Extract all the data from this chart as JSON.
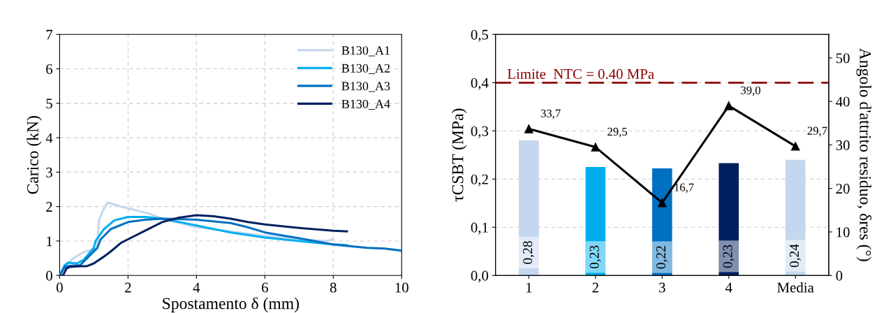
{
  "chart_data": [
    {
      "type": "line",
      "xlabel": "Spostamento δ (mm)",
      "ylabel": "Carico (kN)",
      "xlim": [
        0,
        10
      ],
      "ylim": [
        0,
        7
      ],
      "xticks": [
        0,
        2,
        4,
        6,
        8,
        10
      ],
      "yticks": [
        0,
        1,
        2,
        3,
        4,
        5,
        6,
        7
      ],
      "grid": true,
      "legend": "top right",
      "line_style": "solid",
      "marker": "none",
      "series": [
        {
          "name": "B130_A1",
          "color": "#c5d7ee",
          "x": [
            0,
            0.2,
            0.4,
            0.7,
            1.1,
            1.15,
            1.25,
            1.4,
            1.8,
            2.2,
            2.6,
            3.0,
            4,
            5,
            6,
            7,
            7.8,
            8.0
          ],
          "values": [
            0,
            0.3,
            0.5,
            0.68,
            0.78,
            1.6,
            1.85,
            2.12,
            2.0,
            1.9,
            1.8,
            1.65,
            1.4,
            1.28,
            1.15,
            1.05,
            1.0,
            1.05
          ]
        },
        {
          "name": "B130_A2",
          "color": "#00aeef",
          "x": [
            0,
            0.15,
            0.25,
            0.5,
            0.7,
            1.0,
            1.05,
            1.3,
            1.6,
            2.0,
            2.5,
            3.0,
            4,
            5,
            6,
            7,
            8,
            8.4
          ],
          "values": [
            0,
            0.3,
            0.37,
            0.35,
            0.45,
            0.8,
            1.0,
            1.35,
            1.6,
            1.7,
            1.7,
            1.65,
            1.45,
            1.25,
            1.1,
            1.0,
            0.9,
            0.88
          ]
        },
        {
          "name": "B130_A3",
          "color": "#0070c0",
          "x": [
            0,
            0.15,
            0.3,
            0.6,
            0.8,
            1.1,
            1.2,
            1.5,
            2,
            2.5,
            3,
            4,
            5,
            5.5,
            6,
            7,
            8,
            9,
            9.5,
            10
          ],
          "values": [
            0,
            0.25,
            0.28,
            0.3,
            0.5,
            0.8,
            1.05,
            1.35,
            1.55,
            1.62,
            1.65,
            1.62,
            1.52,
            1.4,
            1.25,
            1.08,
            0.9,
            0.8,
            0.78,
            0.72
          ]
        },
        {
          "name": "B130_A4",
          "color": "#002060",
          "x": [
            0,
            0.1,
            0.2,
            0.3,
            0.6,
            0.8,
            1.0,
            1.3,
            1.5,
            1.8,
            2,
            2.5,
            3,
            3.5,
            4,
            4.5,
            5,
            5.5,
            6,
            7,
            8,
            8.4
          ],
          "values": [
            0,
            0,
            0.2,
            0.25,
            0.27,
            0.27,
            0.35,
            0.55,
            0.7,
            0.95,
            1.05,
            1.3,
            1.55,
            1.68,
            1.75,
            1.72,
            1.65,
            1.55,
            1.48,
            1.38,
            1.3,
            1.28
          ]
        }
      ]
    },
    {
      "type": "bar",
      "categories": [
        "1",
        "2",
        "3",
        "4",
        "Media"
      ],
      "ylabel": "τCSBT (MPa)",
      "y2label": "Angolo d'attrito residuo, δres (°)",
      "ylim": [
        0,
        0.5
      ],
      "yticks": [
        {
          "value": 0,
          "label": "0,0"
        },
        {
          "value": 0.1,
          "label": "0,1"
        },
        {
          "value": 0.2,
          "label": "0,2"
        },
        {
          "value": 0.3,
          "label": "0,3"
        },
        {
          "value": 0.4,
          "label": "0,4"
        },
        {
          "value": 0.5,
          "label": "0,5"
        }
      ],
      "y2lim": [
        0,
        55.4
      ],
      "y2ticks": [
        0,
        10,
        20,
        30,
        40,
        50
      ],
      "grid": "y",
      "legend": false,
      "ref_lines": [
        {
          "axis": "y",
          "value": 0.4,
          "label": "Limite  NTC = 0.40 MPa",
          "color": "#8b0000",
          "line_style": "dashed"
        }
      ],
      "series": [
        {
          "type": "bar",
          "colors": [
            "#c5d7ee",
            "#00aeef",
            "#0070c0",
            "#002060",
            "#c5d7ee"
          ],
          "values": [
            0.28,
            0.225,
            0.222,
            0.233,
            0.24
          ],
          "value_labels": [
            "0,28",
            "0,23",
            "0,22",
            "0,23",
            "0,24"
          ]
        },
        {
          "type": "line",
          "axis": "y2",
          "color": "#000000",
          "marker": "triangle",
          "values": [
            33.7,
            29.5,
            16.7,
            39.0,
            29.7
          ],
          "value_labels": [
            "33,7",
            "29,5",
            "16,7",
            "39,0",
            "29,7"
          ]
        }
      ]
    }
  ]
}
